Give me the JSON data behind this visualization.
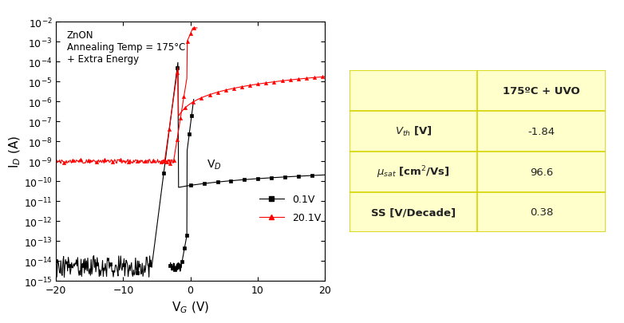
{
  "xlabel": "V$_G$ (V)",
  "ylabel": "I$_D$ (A)",
  "xlim": [
    -20,
    20
  ],
  "ymin": 1e-15,
  "ymax": 0.01,
  "annotation_text": "ZnON\nAnnealing Temp = 175°C\n+ Extra Energy",
  "legend_title": "V$_D$",
  "legend_entries": [
    "0.1V",
    "20.1V"
  ],
  "line_colors": [
    "black",
    "red"
  ],
  "markers": [
    "s",
    "^"
  ],
  "table_header": "175ºC + UVO",
  "table_row_labels": [
    "$V_{th}$ [V]",
    "$\\mu_{sat}$ [cm$^2$/Vs]",
    "SS [V/Decade]"
  ],
  "table_row_values": [
    "-1.84",
    "96.6",
    "0.38"
  ],
  "table_bg": "#ffffcc",
  "table_border": "#d4d400",
  "background_color": "#ffffff"
}
